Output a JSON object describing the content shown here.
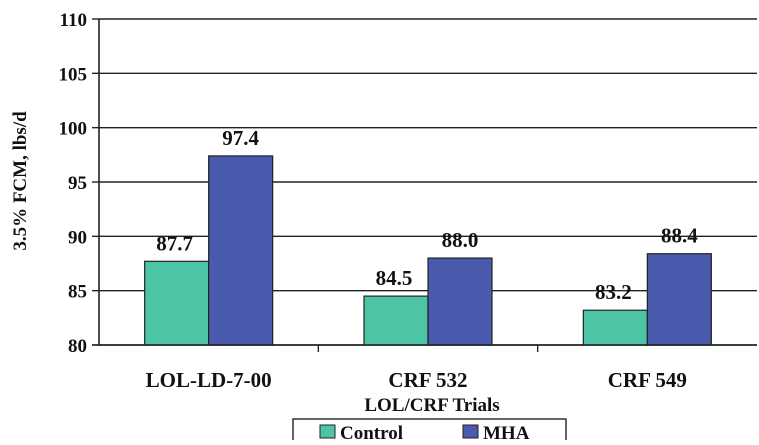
{
  "chart_data": {
    "type": "bar",
    "title": "",
    "xlabel": "LOL/CRF Trials",
    "ylabel": "3.5% FCM, lbs/d",
    "ylim": [
      80,
      110
    ],
    "yticks": [
      80,
      85,
      90,
      95,
      100,
      105,
      110
    ],
    "categories": [
      "LOL-LD-7-00",
      "CRF 532",
      "CRF 549"
    ],
    "series": [
      {
        "name": "Control",
        "color": "#4dc4a6",
        "values": [
          87.7,
          84.5,
          83.2
        ],
        "labels": [
          "87.7",
          "84.5",
          "83.2"
        ]
      },
      {
        "name": "MHA",
        "color": "#4a5aad",
        "values": [
          97.4,
          88.0,
          88.4
        ],
        "labels": [
          "97.4",
          "88.0",
          "88.4"
        ]
      }
    ],
    "grid": "horizontal",
    "legend_position": "bottom"
  }
}
